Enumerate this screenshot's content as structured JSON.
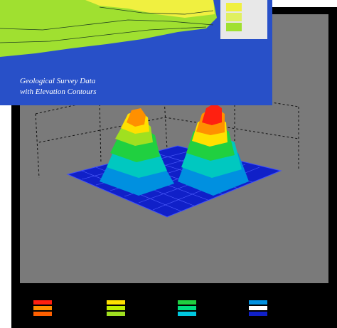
{
  "caption": {
    "line1": "Geological Survey Data",
    "line2": "with Elevation Contours"
  }
}
